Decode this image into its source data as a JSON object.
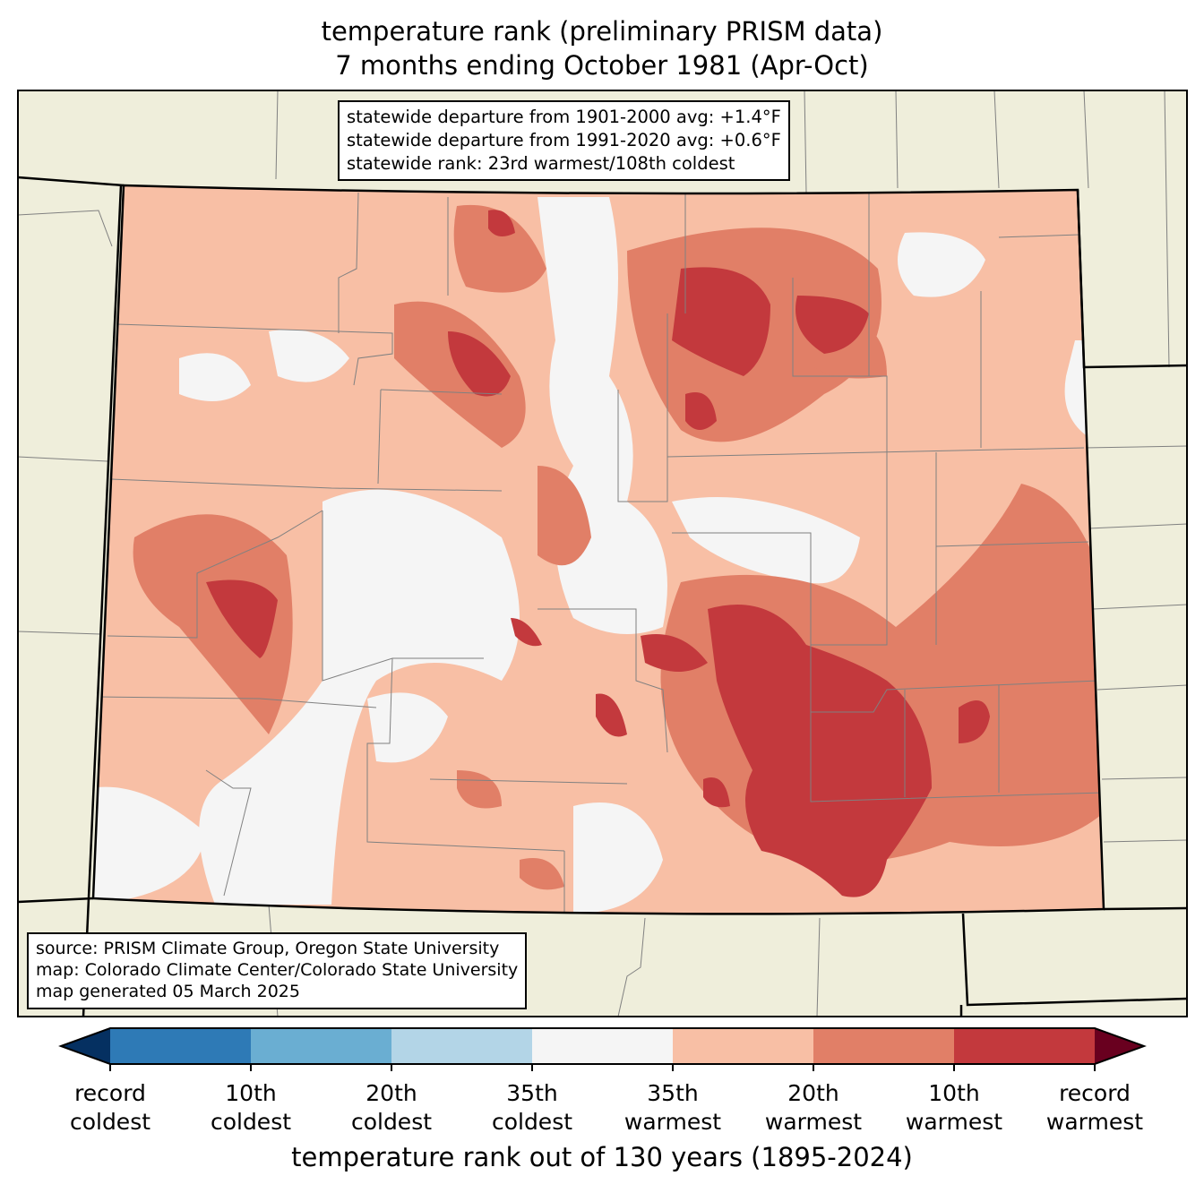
{
  "title": {
    "line1": "temperature rank (preliminary PRISM data)",
    "line2": "7 months ending October 1981 (Apr-Oct)"
  },
  "stats_box": {
    "line1": "statewide departure from 1901-2000 avg: +1.4°F",
    "line2": "statewide departure from 1991-2020 avg: +0.6°F",
    "line3": "statewide rank: 23rd warmest/108th coldest"
  },
  "source_box": {
    "line1": "source: PRISM Climate Group, Oregon State University",
    "line2": "map: Colorado Climate Center/Colorado State University",
    "line3": "map generated 05 March 2025"
  },
  "colorbar": {
    "xlabel": "temperature rank out of 130 years (1895-2024)",
    "colors": [
      "#053061",
      "#2e7ab6",
      "#6aaed2",
      "#b3d5e7",
      "#f5f5f5",
      "#f8bfa5",
      "#e17f67",
      "#c3393d",
      "#69001f"
    ],
    "ticks": [
      {
        "l1": "record",
        "l2": "coldest"
      },
      {
        "l1": "10th",
        "l2": "coldest"
      },
      {
        "l1": "20th",
        "l2": "coldest"
      },
      {
        "l1": "35th",
        "l2": "coldest"
      },
      {
        "l1": "35th",
        "l2": "warmest"
      },
      {
        "l1": "20th",
        "l2": "warmest"
      },
      {
        "l1": "10th",
        "l2": "warmest"
      },
      {
        "l1": "record",
        "l2": "warmest"
      }
    ]
  },
  "map_colors": {
    "land": "#efeedb",
    "border": "#000000",
    "county": "#808080"
  }
}
